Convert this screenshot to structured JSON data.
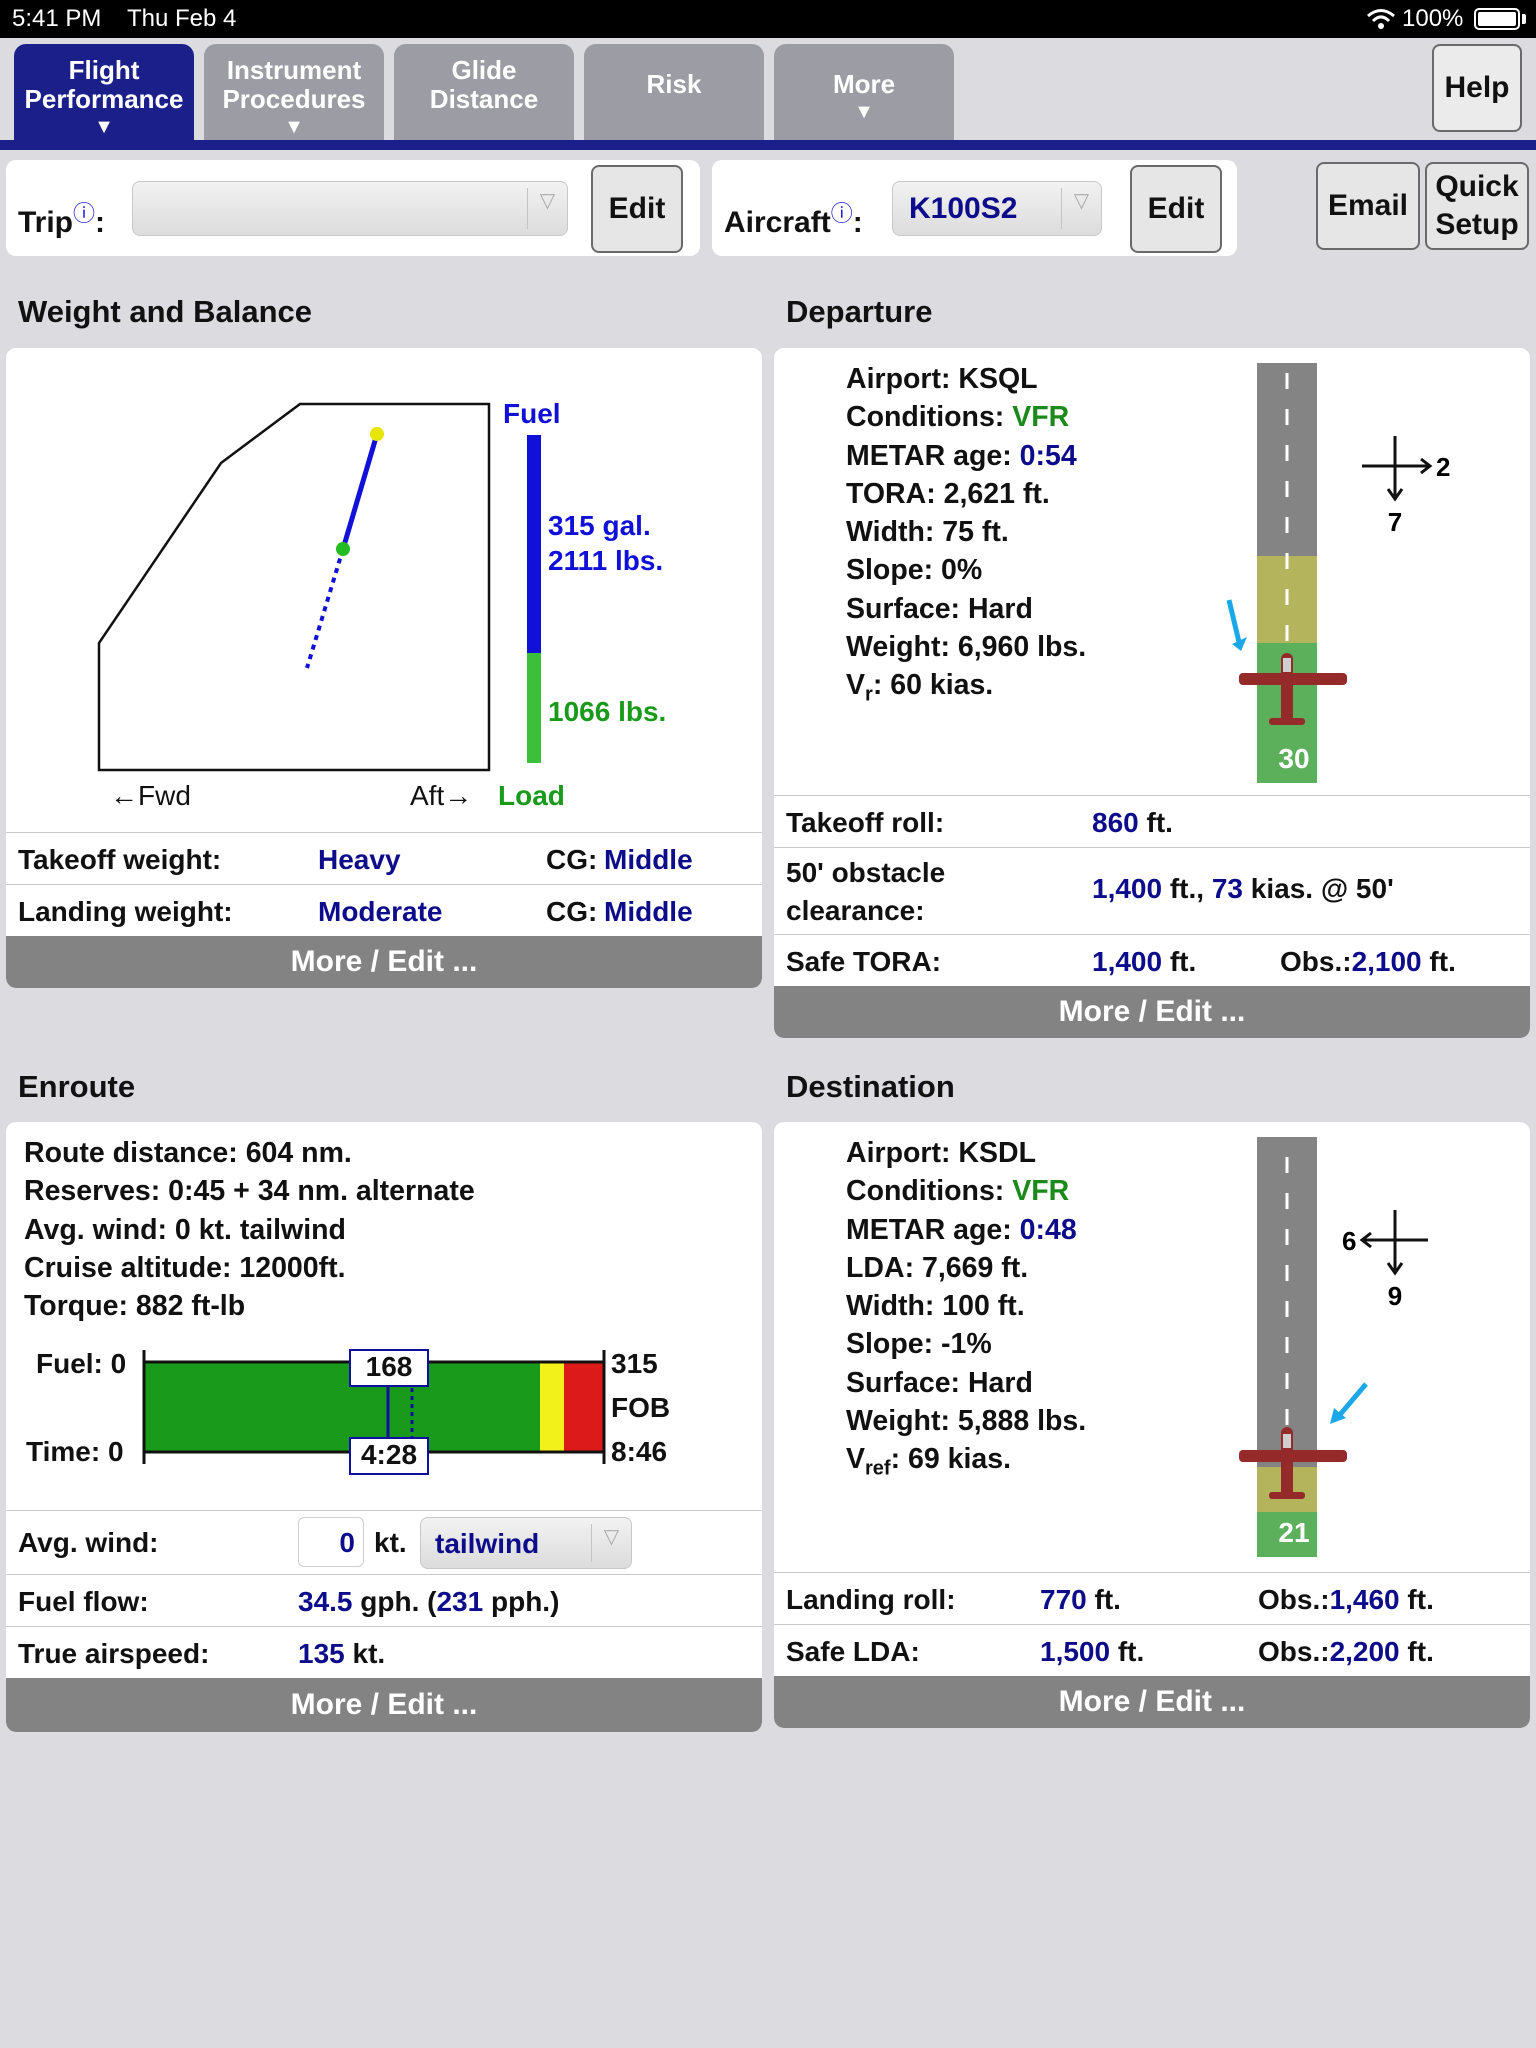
{
  "status_bar": {
    "time": "5:41 PM",
    "date": "Thu Feb 4",
    "battery": "100%"
  },
  "tabs": [
    {
      "label_line1": "Flight",
      "label_line2": "Performance",
      "arrow": "▼",
      "active": true
    },
    {
      "label_line1": "Instrument",
      "label_line2": "Procedures",
      "arrow": "▼",
      "active": false
    },
    {
      "label_line1": "Glide",
      "label_line2": "Distance",
      "arrow": "",
      "active": false
    },
    {
      "label_line1": "Risk",
      "label_line2": "",
      "arrow": "",
      "active": false
    },
    {
      "label_line1": "More",
      "label_line2": "",
      "arrow": "▼",
      "active": false
    }
  ],
  "help_label": "Help",
  "setup_bar": {
    "trip_label": "Trip",
    "trip_value": "",
    "info_glyph": "ⓘ",
    "colon": ":",
    "edit_label": "Edit",
    "aircraft_label": "Aircraft",
    "aircraft_value": "K100S2",
    "email_label": "Email",
    "quick_line1": "Quick",
    "quick_line2": "Setup"
  },
  "weight_balance": {
    "title": "Weight and Balance",
    "fuel_label": "Fuel",
    "fuel_gal": "315 gal.",
    "fuel_lbs": "2111 lbs.",
    "load_lbs": "1066 lbs.",
    "fwd_label": "←Fwd",
    "aft_label": "Aft→",
    "load_label": "Load",
    "fuel_fraction": 0.665,
    "takeoff_label": "Takeoff weight:",
    "takeoff_value": "Heavy",
    "takeoff_cg_label": "CG:",
    "takeoff_cg_value": "Middle",
    "landing_label": "Landing weight:",
    "landing_value": "Moderate",
    "landing_cg_label": "CG:",
    "landing_cg_value": "Middle",
    "more_label": "More / Edit ..."
  },
  "departure": {
    "title": "Departure",
    "airport_label": "Airport:",
    "airport": "KSQL",
    "conditions_label": "Conditions:",
    "conditions": "VFR",
    "metar_label": "METAR age:",
    "metar": "0:54",
    "tora": "TORA: 2,621 ft.",
    "width": "Width: 75 ft.",
    "slope": "Slope: 0%",
    "surface": "Surface: Hard",
    "weight": "Weight: 6,960 lbs.",
    "vr_main": "V",
    "vr_sub": "r",
    "vr_rest": ": 60 kias.",
    "runway_number": "30",
    "wind_cross": "2",
    "wind_head": "7",
    "takeoff_roll_label": "Takeoff roll:",
    "takeoff_roll_value": "860",
    "unit_ft": "ft.",
    "obstacle_label_1": "50' obstacle",
    "obstacle_label_2": "clearance:",
    "obstacle_dist": "1,400",
    "obstacle_ft_comma": "ft.,",
    "obstacle_speed": "73",
    "obstacle_rest": "kias. @ 50'",
    "safe_tora_label": "Safe TORA:",
    "safe_tora_value": "1,400",
    "obs_label": "Obs.:",
    "obs_value": "2,100",
    "more_label": "More / Edit ..."
  },
  "enroute": {
    "title": "Enroute",
    "route": "Route distance: 604 nm.",
    "reserves": "Reserves: 0:45 + 34 nm. alternate",
    "avg_wind_info": "Avg. wind: 0 kt. tailwind",
    "cruise": "Cruise altitude: 12000ft.",
    "torque": "Torque: 882 ft-lb",
    "fuel_label": "Fuel: 0",
    "time_label": "Time: 0",
    "fuel_mid": "168",
    "time_mid": "4:28",
    "fuel_end": "315",
    "fob": "FOB",
    "time_end": "8:46",
    "avg_wind_label": "Avg. wind:",
    "avg_wind_value": "0",
    "kt": "kt.",
    "wind_dir": "tailwind",
    "fuel_flow_label": "Fuel flow:",
    "fuel_flow_gph": "34.5",
    "gph_open": "gph. (",
    "fuel_flow_pph": "231",
    "pph_close": "pph.)",
    "tas_label": "True airspeed:",
    "tas_value": "135",
    "more_label": "More / Edit ..."
  },
  "destination": {
    "title": "Destination",
    "airport_label": "Airport:",
    "airport": "KSDL",
    "conditions_label": "Conditions:",
    "conditions": "VFR",
    "metar_label": "METAR age:",
    "metar": "0:48",
    "lda": "LDA: 7,669 ft.",
    "width": "Width: 100 ft.",
    "slope": "Slope: -1%",
    "surface": "Surface: Hard",
    "weight": "Weight: 5,888 lbs.",
    "vref_main": "V",
    "vref_sub": "ref",
    "vref_rest": ": 69 kias.",
    "runway_number": "21",
    "wind_cross": "6",
    "wind_head": "9",
    "landing_roll_label": "Landing roll:",
    "landing_roll_value": "770",
    "unit_ft": "ft.",
    "obs_label": "Obs.:",
    "obs_value": "1,460",
    "safe_lda_label": "Safe LDA:",
    "safe_lda_value": "1,500",
    "safe_obs_value": "2,200",
    "more_label": "More / Edit ..."
  },
  "colors": {
    "tab_active": "#1a1f8a",
    "tab_inactive": "#9c9ca4",
    "value_blue": "#0d0d8c",
    "vfr_green": "#1a8a1a",
    "fuel_blue": "#1010d8",
    "load_green": "#3cc03c"
  }
}
